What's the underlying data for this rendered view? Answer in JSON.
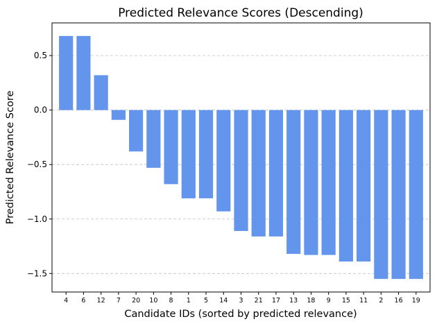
{
  "chart_data": {
    "type": "bar",
    "title": "Predicted Relevance Scores (Descending)",
    "xlabel": "Candidate IDs (sorted by predicted relevance)",
    "ylabel": "Predicted Relevance Score",
    "categories": [
      "4",
      "6",
      "12",
      "7",
      "20",
      "10",
      "8",
      "1",
      "5",
      "14",
      "3",
      "21",
      "17",
      "13",
      "18",
      "9",
      "15",
      "11",
      "2",
      "16",
      "19"
    ],
    "values": [
      0.68,
      0.68,
      0.32,
      -0.09,
      -0.38,
      -0.53,
      -0.68,
      -0.81,
      -0.81,
      -0.93,
      -1.11,
      -1.16,
      -1.16,
      -1.32,
      -1.33,
      -1.33,
      -1.39,
      -1.39,
      -1.55,
      -1.55,
      -1.55
    ],
    "ylim": [
      -1.67,
      0.8
    ],
    "yticks": [
      0.5,
      0.0,
      -0.5,
      -1.0,
      -1.5
    ],
    "ytick_labels": [
      "0.5",
      "0.0",
      "−0.5",
      "−1.0",
      "−1.5"
    ],
    "grid": "y-dashed",
    "bar_color": "#6495ED",
    "grid_color": "#c0c0c0"
  }
}
